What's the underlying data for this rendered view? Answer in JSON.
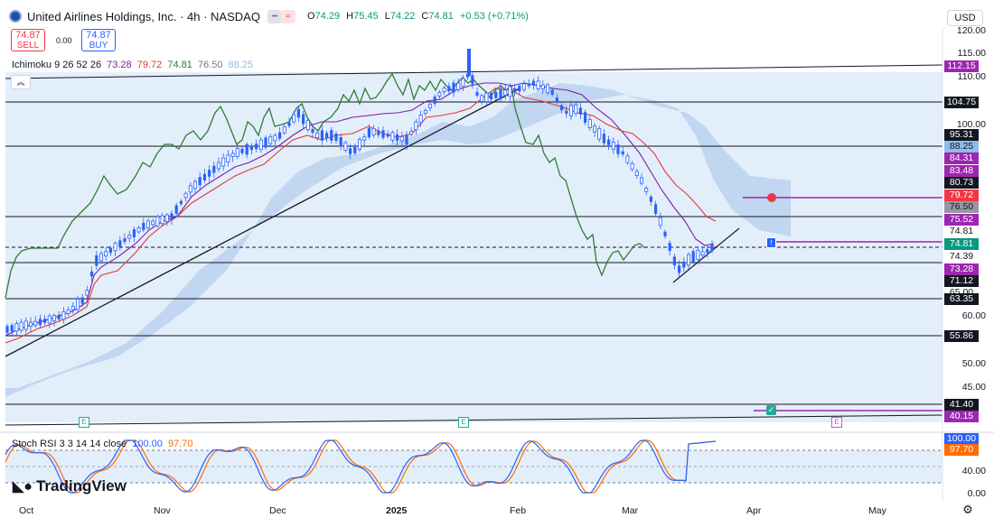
{
  "header": {
    "title": "United Airlines Holdings, Inc. · 4h · NASDAQ",
    "ohlc": [
      {
        "k": "O",
        "v": "74.29"
      },
      {
        "k": "H",
        "v": "75.45"
      },
      {
        "k": "L",
        "v": "74.22"
      },
      {
        "k": "C",
        "v": "74.81"
      },
      {
        "k": "",
        "v": "+0.53 (+0.71%)"
      }
    ],
    "currency": "USD"
  },
  "trade": {
    "sell_price": "74.87",
    "sell_label": "SELL",
    "spread": "0.00",
    "buy_price": "74.87",
    "buy_label": "BUY"
  },
  "indicators": {
    "ichimoku_name": "Ichimoku 9 26 52 26",
    "ichimoku_values": [
      "73.28",
      "79.72",
      "74.81",
      "76.50",
      "88.25"
    ],
    "ichimoku_colors": [
      "#7b1fa2",
      "#e53935",
      "#2e7d32",
      "#131722",
      "#90bce8"
    ],
    "stoch_name": "Stoch RSI 3 3 14 14 close",
    "stoch_k": "100.00",
    "stoch_d": "97.70"
  },
  "axis": {
    "price_ticks": [
      "120.00",
      "115.00",
      "110.00",
      "100.00",
      "60.00",
      "50.00",
      "45.00"
    ],
    "stoch_ticks": [
      "40.00",
      "0.00"
    ],
    "time_labels": [
      "Oct",
      "Nov",
      "Dec",
      "2025",
      "Feb",
      "Mar",
      "Apr",
      "May"
    ]
  },
  "price_tags": [
    {
      "text": "112.15",
      "bg": "#9c27b0",
      "fg": "#ffffff"
    },
    {
      "text": "104.75",
      "bg": "#131722",
      "fg": "#ffffff"
    },
    {
      "text": "95.31",
      "bg": "#131722",
      "fg": "#ffffff"
    },
    {
      "text": "88.25",
      "bg": "#90bce8",
      "fg": "#131722"
    },
    {
      "text": "84.31",
      "bg": "#9c27b0",
      "fg": "#ffffff"
    },
    {
      "text": "83.48",
      "bg": "#9c27b0",
      "fg": "#ffffff"
    },
    {
      "text": "80.73",
      "bg": "#131722",
      "fg": "#ffffff"
    },
    {
      "text": "79.72",
      "bg": "#f23645",
      "fg": "#ffffff"
    },
    {
      "text": "76.50",
      "bg": "#9598a1",
      "fg": "#131722"
    },
    {
      "text": "75.52",
      "bg": "#9c27b0",
      "fg": "#ffffff"
    },
    {
      "text": "74.81",
      "bg": "#ffffff",
      "fg": "#131722"
    },
    {
      "text": "74.81",
      "bg": "#089981",
      "fg": "#ffffff"
    },
    {
      "text": "74.39",
      "bg": "#ffffff",
      "fg": "#131722"
    },
    {
      "text": "73.28",
      "bg": "#9c27b0",
      "fg": "#ffffff"
    },
    {
      "text": "71.12",
      "bg": "#131722",
      "fg": "#ffffff"
    },
    {
      "text": "65.00",
      "bg": "#ffffff",
      "fg": "#131722"
    },
    {
      "text": "63.35",
      "bg": "#131722",
      "fg": "#ffffff"
    },
    {
      "text": "55.86",
      "bg": "#131722",
      "fg": "#ffffff"
    },
    {
      "text": "41.40",
      "bg": "#131722",
      "fg": "#ffffff"
    },
    {
      "text": "40.15",
      "bg": "#9c27b0",
      "fg": "#ffffff"
    }
  ],
  "stoch_tags": [
    {
      "text": "100.00",
      "bg": "#2962ff",
      "fg": "#ffffff"
    },
    {
      "text": "97.70",
      "bg": "#ff6d00",
      "fg": "#ffffff"
    }
  ],
  "markers": {
    "earnings": "E",
    "alert": "!"
  },
  "branding": "TradingView",
  "colors": {
    "up": "#2962ff",
    "down": "#131722",
    "tenkan": "#e53935",
    "kijun": "#7b1fa2",
    "chikou": "#2e7d32",
    "cloud": "#bcd3ee",
    "bg_range": "#e3eefb"
  }
}
